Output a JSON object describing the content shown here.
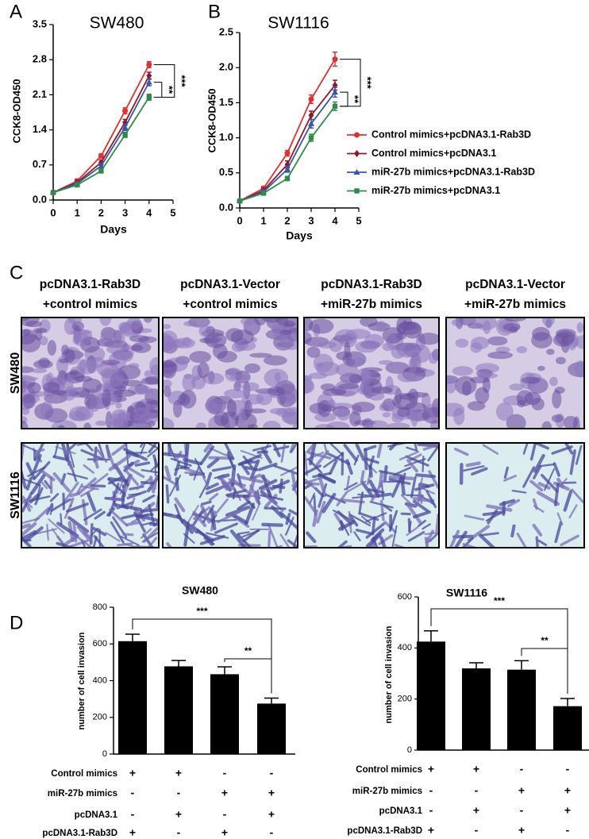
{
  "chart_data": [
    {
      "type": "line",
      "panel": "A",
      "title": "SW480",
      "x_label": "Days",
      "y_label": "CCK8-OD450",
      "x": [
        0,
        1,
        2,
        3,
        4
      ],
      "xlim": [
        0,
        5
      ],
      "xticks": [
        0,
        1,
        2,
        3,
        4,
        5
      ],
      "ylim": [
        0,
        3.5
      ],
      "yticks": [
        {
          "value": 0,
          "label": "0.0"
        },
        0.7,
        1.4,
        2.1,
        2.8,
        3.5
      ],
      "series": [
        {
          "color": "#e0302f",
          "marker": "circle",
          "values": [
            0.15,
            0.38,
            0.88,
            1.78,
            2.7
          ],
          "errors": [
            0.02,
            0.04,
            0.04,
            0.06,
            0.06
          ]
        },
        {
          "color": "#8b1a2a",
          "marker": "diamond",
          "values": [
            0.15,
            0.35,
            0.75,
            1.55,
            2.48
          ],
          "errors": [
            0.02,
            0.04,
            0.05,
            0.06,
            0.07
          ]
        },
        {
          "color": "#3a55a5",
          "marker": "triangle",
          "values": [
            0.15,
            0.33,
            0.68,
            1.45,
            2.35
          ],
          "errors": [
            0.02,
            0.03,
            0.05,
            0.06,
            0.07
          ]
        },
        {
          "color": "#2e8b4a",
          "marker": "square",
          "values": [
            0.15,
            0.3,
            0.58,
            1.3,
            2.05
          ],
          "errors": [
            0.02,
            0.03,
            0.04,
            0.05,
            0.06
          ]
        }
      ],
      "annotations": [
        "***",
        "**"
      ]
    },
    {
      "type": "line",
      "panel": "B",
      "title": "SW1116",
      "x_label": "Days",
      "y_label": "CCK8-OD450",
      "x": [
        0,
        1,
        2,
        3,
        4
      ],
      "xlim": [
        0,
        5
      ],
      "xticks": [
        0,
        1,
        2,
        3,
        4,
        5
      ],
      "ylim": [
        0,
        2.5
      ],
      "yticks": [
        {
          "value": 0,
          "label": "0.0"
        },
        0.5,
        {
          "value": 1,
          "label": "1.0"
        },
        1.5,
        {
          "value": 2,
          "label": "2.0"
        },
        2.5
      ],
      "legend": "right",
      "series": [
        {
          "name": "Control mimics+pcDNA3.1-Rab3D",
          "color": "#e0302f",
          "marker": "circle",
          "values": [
            0.1,
            0.28,
            0.78,
            1.55,
            2.12
          ],
          "errors": [
            0.01,
            0.03,
            0.04,
            0.06,
            0.1
          ]
        },
        {
          "name": "Control mimics+pcDNA3.1",
          "color": "#8b1a2a",
          "marker": "diamond",
          "values": [
            0.1,
            0.25,
            0.62,
            1.32,
            1.75
          ],
          "errors": [
            0.01,
            0.03,
            0.05,
            0.06,
            0.07
          ]
        },
        {
          "name": "miR-27b mimics+pcDNA3.1-Rab3D",
          "color": "#3a55a5",
          "marker": "triangle",
          "values": [
            0.1,
            0.23,
            0.55,
            1.2,
            1.65
          ],
          "errors": [
            0.01,
            0.03,
            0.04,
            0.06,
            0.07
          ]
        },
        {
          "name": "miR-27b mimics+pcDNA3.1",
          "color": "#2e8b4a",
          "marker": "square",
          "values": [
            0.1,
            0.21,
            0.42,
            1.0,
            1.45
          ],
          "errors": [
            0.01,
            0.02,
            0.03,
            0.05,
            0.06
          ]
        }
      ],
      "annotations": [
        "***",
        "**"
      ]
    },
    {
      "type": "bar",
      "title": "SW480",
      "y_label": "number of cell invasion",
      "color": "#000000",
      "values": [
        615,
        478,
        435,
        275
      ],
      "errors": [
        38,
        32,
        40,
        30
      ],
      "ylim": [
        0,
        800
      ],
      "yticks": [
        0,
        200,
        400,
        600,
        800
      ],
      "annotations": [
        "***",
        "**"
      ],
      "conditions": [
        {
          "label": "Control mimics",
          "signs": [
            "+",
            "+",
            "-",
            "-"
          ]
        },
        {
          "label": "miR-27b mimics",
          "signs": [
            "-",
            "-",
            "+",
            "+"
          ]
        },
        {
          "label": "pcDNA3.1",
          "signs": [
            "-",
            "+",
            "-",
            "+"
          ]
        },
        {
          "label": "pcDNA3.1-Rab3D",
          "signs": [
            "+",
            "-",
            "+",
            "-"
          ]
        }
      ]
    },
    {
      "type": "bar",
      "panel": "D",
      "title": "SW1116",
      "y_label": "number of cell invasion",
      "color": "#000000",
      "values": [
        425,
        320,
        315,
        172
      ],
      "errors": [
        42,
        22,
        35,
        30
      ],
      "ylim": [
        0,
        600
      ],
      "yticks": [
        0,
        200,
        400,
        600
      ],
      "annotations": [
        "***",
        "**"
      ],
      "conditions": [
        {
          "label": "Control mimics",
          "signs": [
            "+",
            "+",
            "-",
            "-"
          ]
        },
        {
          "label": "miR-27b mimics",
          "signs": [
            "-",
            "-",
            "+",
            "+"
          ]
        },
        {
          "label": "pcDNA3.1",
          "signs": [
            "-",
            "+",
            "-",
            "+"
          ]
        },
        {
          "label": "pcDNA3.1-Rab3D",
          "signs": [
            "+",
            "-",
            "+",
            "-"
          ]
        }
      ]
    }
  ],
  "panel_c": {
    "panel": "C",
    "columns": [
      [
        "pcDNA3.1-Rab3D",
        "+control mimics"
      ],
      [
        "pcDNA3.1-Vector",
        "+control mimics"
      ],
      [
        "pcDNA3.1-Rab3D",
        "+miR-27b mimics"
      ],
      [
        "pcDNA3.1-Vector",
        "+miR-27b mimics"
      ]
    ],
    "rows": [
      "SW480",
      "SW1116"
    ]
  }
}
